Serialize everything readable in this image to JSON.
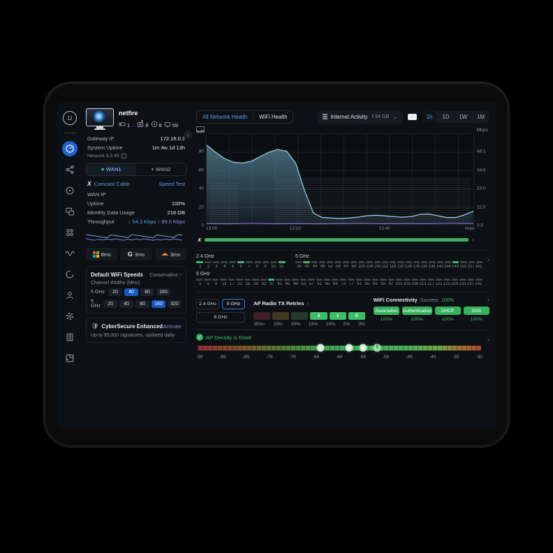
{
  "colors": {
    "accent_blue": "#5e9cf5",
    "green": "#3dbd68",
    "teal": "#93c9da",
    "purple": "#8577d8",
    "isp_bar": "#3fae5f"
  },
  "sidebar": {
    "items": [
      {
        "name": "dashboard",
        "active": true
      },
      {
        "name": "topology",
        "active": false
      },
      {
        "name": "radios",
        "active": false
      },
      {
        "name": "devices",
        "active": false
      },
      {
        "name": "clients",
        "active": false
      },
      {
        "name": "insights",
        "active": false
      },
      {
        "name": "security",
        "active": false
      },
      {
        "name": "admins",
        "active": false
      },
      {
        "name": "settings",
        "active": false
      },
      {
        "name": "system-log",
        "active": false
      },
      {
        "name": "floorplan",
        "active": false
      }
    ]
  },
  "console": {
    "name": "netfire",
    "stats": [
      {
        "icon": "gateway-icon",
        "value": "1",
        "badge": false,
        "sep": "–"
      },
      {
        "icon": "switches-icon",
        "value": "8",
        "badge": true,
        "sep": ""
      },
      {
        "icon": "access-points-icon",
        "value": "8",
        "badge": false,
        "sep": ""
      },
      {
        "icon": "clients-icon",
        "value": "59",
        "badge": false,
        "sep": ""
      }
    ],
    "gateway_ip_label": "Gateway IP",
    "gateway_ip": "172.16.0.1",
    "uptime_label": "System Uptime",
    "uptime": "1m 4w 1d 13h",
    "version": "Network 9.3.45"
  },
  "wan": {
    "tabs": [
      {
        "label": "WAN1",
        "active": true
      },
      {
        "label": "WAN2",
        "active": false
      }
    ],
    "isp_logo": "X",
    "isp_name": "Comcast Cable",
    "speed_test_label": "Speed Test",
    "rows": [
      {
        "label": "WAN IP",
        "value": "",
        "value_class": ""
      },
      {
        "label": "Uptime",
        "value": "100%",
        "value_class": "grn"
      },
      {
        "label": "Monthly Data Usage",
        "value": "218 GB",
        "value_class": ""
      }
    ],
    "throughput_label": "Throughput",
    "down_arrow": "↓",
    "download": "54.3 Kbps",
    "up_arrow": "↑",
    "upload": "89.0 Kbps",
    "latency": [
      {
        "provider": "microsoft",
        "value": "8ms"
      },
      {
        "provider": "google",
        "value": "3ms"
      },
      {
        "provider": "aws",
        "value": "3ms"
      }
    ]
  },
  "wifi_speeds": {
    "title": "Default WiFi Speeds",
    "mode": "Conservative",
    "mode_chevron": "›",
    "subtitle": "Channel Widths (MHz)",
    "rows": [
      {
        "band": "5 GHz",
        "options": [
          "20",
          "40",
          "80",
          "160"
        ],
        "selected": "40"
      },
      {
        "band": "6 GHz",
        "options": [
          "20",
          "40",
          "80",
          "160",
          "320"
        ],
        "selected": "160"
      }
    ]
  },
  "cybersecure": {
    "title": "CyberSecure Enhanced",
    "action": "Activate",
    "subtitle": "Up to 95,000 signatures, updated daily."
  },
  "header": {
    "tabs": [
      {
        "label": "All Network Health",
        "active": true
      },
      {
        "label": "WiFi Health",
        "active": false
      }
    ],
    "activity_label": "Internet Activity",
    "activity_value": "7.54 GB",
    "dropdown_chevron": "⌄",
    "ranges": [
      {
        "label": "1h",
        "active": true
      },
      {
        "label": "1D",
        "active": false
      },
      {
        "label": "1W",
        "active": false
      },
      {
        "label": "1M",
        "active": false
      }
    ],
    "unit": "Mbps"
  },
  "chart_data": {
    "type": "area",
    "title": "Internet Activity",
    "x_ticks": [
      "13:00",
      "13:20",
      "13:40",
      "Now"
    ],
    "x_range_minutes": [
      0,
      60
    ],
    "y_left_labels": [
      "80",
      "60",
      "40",
      "20",
      "0"
    ],
    "y_left_max": 100,
    "y_right_labels": [
      "46.1",
      "34.6",
      "23.0",
      "11.5",
      "0.0"
    ],
    "ylabel": "Mbps",
    "grid": true,
    "series": [
      {
        "name": "throughput",
        "color": "#93c9da",
        "points": [
          [
            0,
            88
          ],
          [
            2,
            80
          ],
          [
            4,
            73
          ],
          [
            6,
            69
          ],
          [
            8,
            68
          ],
          [
            10,
            70
          ],
          [
            12,
            75
          ],
          [
            14,
            80
          ],
          [
            16,
            83
          ],
          [
            18,
            81
          ],
          [
            20,
            68
          ],
          [
            22,
            38
          ],
          [
            24,
            13
          ],
          [
            26,
            8
          ],
          [
            28,
            7.5
          ],
          [
            30,
            7
          ],
          [
            32,
            7.5
          ],
          [
            34,
            8.5
          ],
          [
            36,
            10
          ],
          [
            38,
            10.5
          ],
          [
            40,
            10
          ],
          [
            42,
            9
          ],
          [
            44,
            8.5
          ],
          [
            46,
            9
          ],
          [
            48,
            11.5
          ],
          [
            50,
            12
          ],
          [
            52,
            10
          ],
          [
            54,
            8
          ],
          [
            56,
            8
          ],
          [
            58,
            11
          ],
          [
            60,
            15
          ]
        ]
      },
      {
        "name": "secondary",
        "color": "#8577d8",
        "points": [
          [
            0,
            1.5
          ],
          [
            5,
            1.1
          ],
          [
            10,
            1.8
          ],
          [
            15,
            1.2
          ],
          [
            20,
            1.6
          ],
          [
            25,
            1.1
          ],
          [
            30,
            1.5
          ],
          [
            35,
            1.9
          ],
          [
            40,
            1.2
          ],
          [
            45,
            1.6
          ],
          [
            50,
            1.3
          ],
          [
            55,
            1.8
          ],
          [
            60,
            1.5
          ]
        ]
      }
    ],
    "isp_health_bar": {
      "logo": "X",
      "status": "good"
    }
  },
  "channels": {
    "chevron": "›",
    "bands": [
      {
        "label": "2.4 GHz",
        "channels": [
          1,
          2,
          3,
          4,
          5,
          6,
          7,
          8,
          9,
          10,
          11
        ],
        "active": [
          1,
          6,
          11
        ]
      },
      {
        "label": "5 GHz",
        "channels": [
          36,
          40,
          44,
          48,
          52,
          56,
          60,
          64,
          100,
          104,
          108,
          112,
          116,
          120,
          124,
          128,
          132,
          136,
          140,
          144,
          149,
          153,
          157,
          161
        ],
        "active": [
          40,
          149
        ]
      },
      {
        "label": "6 GHz",
        "channels": [
          1,
          5,
          9,
          13,
          17,
          21,
          25,
          29,
          33,
          37,
          41,
          45,
          49,
          53,
          57,
          61,
          65,
          69,
          73,
          77,
          81,
          85,
          89,
          93,
          97,
          101,
          105,
          109,
          113,
          117,
          121,
          125,
          129,
          133,
          137,
          141
        ],
        "active": [
          37
        ]
      }
    ]
  },
  "tx_retries": {
    "title": "AP Radio TX Retries",
    "chevron": "›",
    "band_buttons": [
      {
        "label": "2.4 GHz",
        "active": false
      },
      {
        "label": "5 GHz",
        "active": true
      },
      {
        "label": "6 GHz",
        "active": false,
        "full": true
      }
    ],
    "bins": [
      {
        "color": "#3f2026",
        "count": ""
      },
      {
        "color": "#3f3a1e",
        "count": ""
      },
      {
        "color": "#27392b",
        "count": ""
      },
      {
        "color": "#3dbd68",
        "count": "2"
      },
      {
        "color": "#3dbd68",
        "count": "1"
      },
      {
        "color": "#3dbd68",
        "count": "5"
      }
    ],
    "bin_labels": [
      "35%+",
      "25%",
      "20%",
      "15%",
      "10%",
      "5%",
      "0%"
    ]
  },
  "connectivity": {
    "title": "WiFi Connectivity",
    "success_label": "Success",
    "success_value": "100%",
    "chevron": "›",
    "stages": [
      {
        "label": "Association",
        "value": "100%"
      },
      {
        "label": "Authentication",
        "value": "100%"
      },
      {
        "label": "DHCP",
        "value": "100%"
      },
      {
        "label": "DNS",
        "value": "100%"
      }
    ]
  },
  "ap_density": {
    "status": "AP Density is Good",
    "chevron": "›",
    "range_dbm": [
      -90,
      -30
    ],
    "tick_labels": [
      "-90",
      "-85",
      "-80",
      "-75",
      "-70",
      "-65",
      "-60",
      "-55",
      "-50",
      "-45",
      "-40",
      "-35",
      "-30"
    ],
    "markers": [
      {
        "dbm": -64,
        "count": ""
      },
      {
        "dbm": -58,
        "count": ""
      },
      {
        "dbm": -55,
        "count": ""
      },
      {
        "dbm": -52,
        "count": "2"
      }
    ]
  }
}
